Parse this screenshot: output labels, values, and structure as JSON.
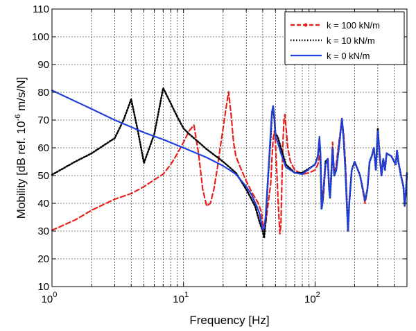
{
  "chart_data": {
    "type": "line",
    "xscale": "log",
    "xlim": [
      1,
      500
    ],
    "ylim": [
      10,
      110
    ],
    "grid": true,
    "legend_position": "top-right",
    "xlabel": "Frequency [Hz]",
    "ylabel_parts": {
      "pre": "Mobility [dB ref. 10",
      "sup": "-6",
      "post": " m/s/N]"
    },
    "xticks": [
      {
        "value": 1,
        "base": "10",
        "exp": "0"
      },
      {
        "value": 10,
        "base": "10",
        "exp": "1"
      },
      {
        "value": 100,
        "base": "10",
        "exp": "2"
      }
    ],
    "yticks": [
      10,
      20,
      30,
      40,
      50,
      60,
      70,
      80,
      90,
      100,
      110
    ],
    "series": [
      {
        "name": "k = 100 kN/m",
        "color": "#e8201c",
        "style": "dashed",
        "points": [
          [
            1,
            30.3
          ],
          [
            1.5,
            34
          ],
          [
            2,
            37.5
          ],
          [
            3,
            41.5
          ],
          [
            4,
            43.5
          ],
          [
            5,
            46
          ],
          [
            6,
            48.5
          ],
          [
            7,
            50.5
          ],
          [
            8,
            54
          ],
          [
            9,
            58
          ],
          [
            10,
            62
          ],
          [
            11,
            66
          ],
          [
            12,
            68.2
          ],
          [
            13,
            58
          ],
          [
            14,
            45
          ],
          [
            15,
            39
          ],
          [
            16,
            40
          ],
          [
            17,
            45
          ],
          [
            18,
            52
          ],
          [
            19,
            60
          ],
          [
            20,
            67
          ],
          [
            21,
            74
          ],
          [
            22,
            80.2
          ],
          [
            23,
            72
          ],
          [
            24,
            62
          ],
          [
            25,
            57
          ],
          [
            27,
            53
          ],
          [
            30,
            48
          ],
          [
            33,
            44
          ],
          [
            35,
            42
          ],
          [
            37,
            40
          ],
          [
            39,
            37
          ],
          [
            40,
            33
          ],
          [
            41,
            30.5
          ],
          [
            42,
            32
          ],
          [
            44,
            40
          ],
          [
            46,
            47
          ],
          [
            47,
            56
          ],
          [
            48,
            63
          ],
          [
            49,
            66
          ],
          [
            50,
            62
          ],
          [
            51,
            53
          ],
          [
            52,
            44
          ],
          [
            53,
            36
          ],
          [
            54,
            29
          ],
          [
            55,
            32
          ],
          [
            56,
            48
          ],
          [
            57,
            62
          ],
          [
            58,
            70
          ],
          [
            59,
            72
          ],
          [
            60,
            68
          ],
          [
            62,
            60
          ],
          [
            65,
            55
          ],
          [
            70,
            52
          ],
          [
            80,
            50.5
          ],
          [
            90,
            51
          ],
          [
            100,
            52
          ],
          [
            105,
            54
          ],
          [
            108,
            57
          ],
          [
            110,
            55
          ],
          [
            112,
            45
          ],
          [
            114,
            40
          ],
          [
            116,
            43
          ],
          [
            120,
            53
          ],
          [
            125,
            56
          ],
          [
            128,
            45
          ],
          [
            130,
            43
          ],
          [
            133,
            52
          ],
          [
            136,
            62
          ],
          [
            140,
            50
          ],
          [
            145,
            54
          ],
          [
            150,
            60
          ],
          [
            155,
            65
          ],
          [
            160,
            70.3
          ],
          [
            165,
            65
          ],
          [
            170,
            55
          ],
          [
            175,
            40
          ],
          [
            178,
            30
          ],
          [
            182,
            40
          ],
          [
            190,
            52
          ],
          [
            200,
            55
          ],
          [
            220,
            50
          ],
          [
            240,
            40
          ],
          [
            250,
            45
          ],
          [
            260,
            55
          ],
          [
            270,
            57
          ],
          [
            280,
            60
          ],
          [
            290,
            52
          ],
          [
            300,
            66
          ],
          [
            310,
            58
          ],
          [
            320,
            50
          ],
          [
            330,
            56
          ],
          [
            340,
            52
          ],
          [
            350,
            58
          ],
          [
            380,
            57
          ],
          [
            410,
            54
          ],
          [
            420,
            59
          ],
          [
            430,
            55
          ],
          [
            450,
            50
          ],
          [
            470,
            46
          ],
          [
            480,
            39
          ],
          [
            490,
            43
          ],
          [
            500,
            50
          ]
        ]
      },
      {
        "name": "k = 10 kN/m",
        "color": "#000000",
        "style": "dotted",
        "points": [
          [
            1,
            50.3
          ],
          [
            1.5,
            55
          ],
          [
            2,
            58
          ],
          [
            3,
            63.5
          ],
          [
            3.5,
            70
          ],
          [
            4,
            77.5
          ],
          [
            4.5,
            66
          ],
          [
            5,
            54.5
          ],
          [
            6,
            65
          ],
          [
            7,
            81.5
          ],
          [
            8,
            76
          ],
          [
            9,
            71
          ],
          [
            10,
            67
          ],
          [
            11,
            65
          ],
          [
            12,
            63.5
          ],
          [
            15,
            59.5
          ],
          [
            20,
            55
          ],
          [
            25,
            51
          ],
          [
            30,
            45
          ],
          [
            35,
            39
          ],
          [
            38,
            33
          ],
          [
            40,
            30
          ],
          [
            41,
            27.5
          ],
          [
            42,
            33
          ],
          [
            44,
            50
          ],
          [
            46,
            64
          ],
          [
            47,
            72
          ],
          [
            48,
            75
          ],
          [
            49,
            71
          ],
          [
            50,
            65
          ],
          [
            52,
            64
          ],
          [
            55,
            60
          ],
          [
            60,
            54
          ],
          [
            70,
            51
          ],
          [
            80,
            51
          ],
          [
            100,
            54
          ],
          [
            105,
            57
          ],
          [
            108,
            63
          ],
          [
            110,
            57
          ],
          [
            112,
            38
          ],
          [
            114,
            40
          ],
          [
            116,
            45
          ],
          [
            120,
            55
          ],
          [
            125,
            56
          ],
          [
            128,
            45
          ],
          [
            130,
            42
          ],
          [
            133,
            50
          ],
          [
            136,
            60
          ],
          [
            140,
            50
          ],
          [
            145,
            52
          ],
          [
            150,
            58
          ],
          [
            155,
            64
          ],
          [
            160,
            70.5
          ],
          [
            165,
            63
          ],
          [
            170,
            52
          ],
          [
            175,
            38
          ],
          [
            178,
            30
          ],
          [
            182,
            40
          ],
          [
            190,
            52
          ],
          [
            200,
            55
          ],
          [
            220,
            50
          ],
          [
            240,
            41
          ],
          [
            250,
            45
          ],
          [
            260,
            55
          ],
          [
            270,
            57
          ],
          [
            280,
            60
          ],
          [
            290,
            52
          ],
          [
            300,
            67
          ],
          [
            310,
            57
          ],
          [
            320,
            50
          ],
          [
            330,
            56
          ],
          [
            340,
            52
          ],
          [
            350,
            58
          ],
          [
            380,
            57
          ],
          [
            410,
            54
          ],
          [
            420,
            59
          ],
          [
            430,
            55
          ],
          [
            450,
            50
          ],
          [
            470,
            46
          ],
          [
            480,
            39
          ],
          [
            490,
            44
          ],
          [
            500,
            51
          ]
        ]
      },
      {
        "name": "k = 0 kN/m",
        "color": "#1f3fdc",
        "style": "solid",
        "points": [
          [
            1,
            80.7
          ],
          [
            2,
            74
          ],
          [
            3,
            70
          ],
          [
            4,
            67.5
          ],
          [
            5,
            65.5
          ],
          [
            7,
            63
          ],
          [
            10,
            60
          ],
          [
            15,
            56.5
          ],
          [
            20,
            53.5
          ],
          [
            25,
            50.5
          ],
          [
            30,
            46
          ],
          [
            33,
            43
          ],
          [
            36,
            39
          ],
          [
            38,
            36
          ],
          [
            39,
            33
          ],
          [
            40,
            30.5
          ],
          [
            41,
            31
          ],
          [
            42,
            35
          ],
          [
            44,
            50
          ],
          [
            46,
            66
          ],
          [
            47,
            73
          ],
          [
            48,
            75
          ],
          [
            49,
            70
          ],
          [
            50,
            64
          ],
          [
            52,
            62
          ],
          [
            55,
            58
          ],
          [
            60,
            53
          ],
          [
            70,
            51
          ],
          [
            80,
            50.5
          ],
          [
            100,
            54
          ],
          [
            105,
            57
          ],
          [
            108,
            64
          ],
          [
            110,
            58
          ],
          [
            112,
            38
          ],
          [
            114,
            40
          ],
          [
            116,
            45
          ],
          [
            120,
            54
          ],
          [
            125,
            56
          ],
          [
            128,
            45
          ],
          [
            130,
            42
          ],
          [
            133,
            51
          ],
          [
            136,
            60
          ],
          [
            140,
            50
          ],
          [
            145,
            52
          ],
          [
            150,
            58
          ],
          [
            155,
            64
          ],
          [
            160,
            70.5
          ],
          [
            165,
            63
          ],
          [
            170,
            52
          ],
          [
            175,
            38
          ],
          [
            178,
            30
          ],
          [
            182,
            40
          ],
          [
            190,
            52
          ],
          [
            200,
            55
          ],
          [
            220,
            50
          ],
          [
            240,
            41
          ],
          [
            250,
            45
          ],
          [
            260,
            55
          ],
          [
            270,
            57
          ],
          [
            280,
            60
          ],
          [
            290,
            52
          ],
          [
            300,
            66
          ],
          [
            310,
            57
          ],
          [
            320,
            50
          ],
          [
            330,
            56
          ],
          [
            340,
            52
          ],
          [
            350,
            58
          ],
          [
            380,
            57
          ],
          [
            410,
            54
          ],
          [
            420,
            59
          ],
          [
            430,
            55
          ],
          [
            450,
            50
          ],
          [
            470,
            46
          ],
          [
            480,
            39
          ],
          [
            490,
            44
          ],
          [
            500,
            51
          ]
        ]
      }
    ]
  }
}
